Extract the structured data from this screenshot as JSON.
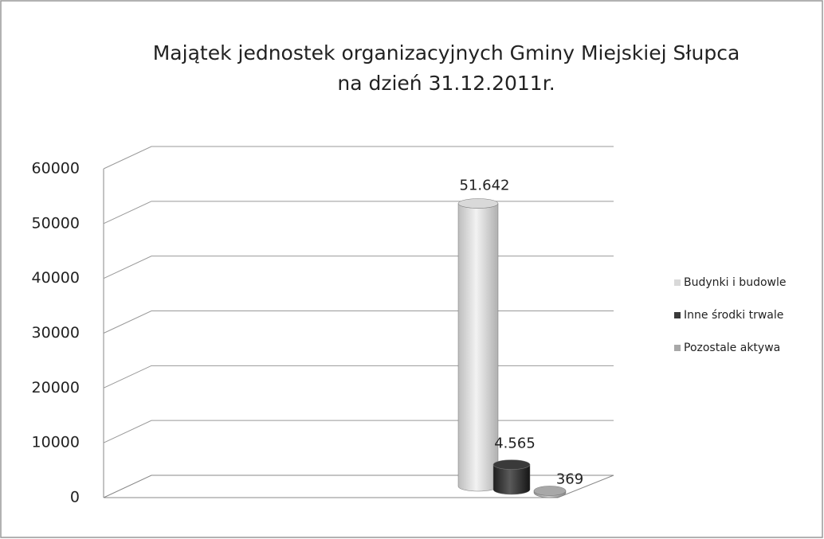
{
  "chart_data": {
    "type": "bar3d",
    "title_lines": [
      "Majątek jednostek organizacyjnych Gminy Miejskiej Słupca",
      "na dzień  31.12.2011r."
    ],
    "categories": [
      null
    ],
    "series": [
      {
        "name": "Budynki i budowle",
        "color": "#d9d9d9",
        "values": [
          51642
        ],
        "value_labels": [
          "51.642"
        ]
      },
      {
        "name": "Inne środki trwale",
        "color": "#3a3a3a",
        "values": [
          4565
        ],
        "value_labels": [
          "4.565"
        ]
      },
      {
        "name": "Pozostale aktywa",
        "color": "#a8a8a8",
        "values": [
          369
        ],
        "value_labels": [
          "369"
        ]
      }
    ],
    "ylim": [
      0,
      60000
    ],
    "yticks": [
      0,
      10000,
      20000,
      30000,
      40000,
      50000,
      60000
    ],
    "grid": true,
    "legend": "right"
  }
}
